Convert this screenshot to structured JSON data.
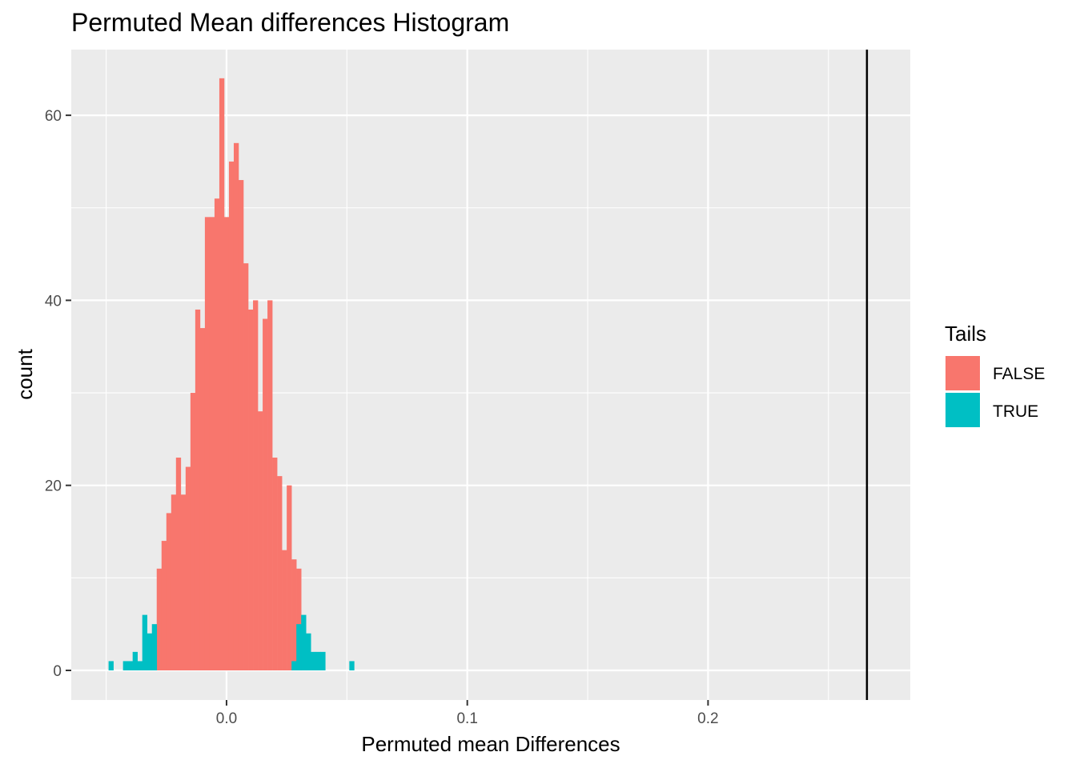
{
  "chart_data": {
    "type": "bar",
    "title": "Permuted Mean differences Histogram",
    "xlabel": "Permuted mean Differences",
    "ylabel": "count",
    "xlim": [
      -0.0645,
      0.284
    ],
    "ylim": [
      -3.2,
      67.1
    ],
    "x_ticks": [
      {
        "value": 0.0,
        "label": "0.0"
      },
      {
        "value": 0.1,
        "label": "0.1"
      },
      {
        "value": 0.2,
        "label": "0.2"
      }
    ],
    "x_minor_ticks": [
      -0.05,
      0.05,
      0.15,
      0.25
    ],
    "y_ticks": [
      {
        "value": 0,
        "label": "0"
      },
      {
        "value": 20,
        "label": "20"
      },
      {
        "value": 40,
        "label": "40"
      },
      {
        "value": 60,
        "label": "60"
      }
    ],
    "y_minor_ticks": [
      10,
      30,
      50
    ],
    "grid": true,
    "binwidth": 0.002,
    "series": [
      {
        "name": "FALSE",
        "color": "#f8766d",
        "bins": [
          {
            "x": -0.028,
            "count": 11
          },
          {
            "x": -0.026,
            "count": 14
          },
          {
            "x": -0.024,
            "count": 17
          },
          {
            "x": -0.022,
            "count": 19
          },
          {
            "x": -0.02,
            "count": 23
          },
          {
            "x": -0.018,
            "count": 19
          },
          {
            "x": -0.016,
            "count": 22
          },
          {
            "x": -0.014,
            "count": 30
          },
          {
            "x": -0.012,
            "count": 39
          },
          {
            "x": -0.01,
            "count": 37
          },
          {
            "x": -0.008,
            "count": 49
          },
          {
            "x": -0.006,
            "count": 49
          },
          {
            "x": -0.004,
            "count": 51
          },
          {
            "x": -0.002,
            "count": 64
          },
          {
            "x": 0.0,
            "count": 49
          },
          {
            "x": 0.002,
            "count": 55
          },
          {
            "x": 0.004,
            "count": 57
          },
          {
            "x": 0.006,
            "count": 53
          },
          {
            "x": 0.008,
            "count": 44
          },
          {
            "x": 0.01,
            "count": 39
          },
          {
            "x": 0.012,
            "count": 40
          },
          {
            "x": 0.014,
            "count": 28
          },
          {
            "x": 0.016,
            "count": 38
          },
          {
            "x": 0.018,
            "count": 40
          },
          {
            "x": 0.02,
            "count": 23
          },
          {
            "x": 0.022,
            "count": 21
          },
          {
            "x": 0.024,
            "count": 13
          },
          {
            "x": 0.026,
            "count": 20
          },
          {
            "x": 0.028,
            "count": 12
          },
          {
            "x": 0.03,
            "count": 11
          }
        ]
      },
      {
        "name": "TRUE",
        "color": "#00bfc4",
        "bins": [
          {
            "x": -0.048,
            "count": 1
          },
          {
            "x": -0.042,
            "count": 1
          },
          {
            "x": -0.04,
            "count": 1
          },
          {
            "x": -0.038,
            "count": 2
          },
          {
            "x": -0.036,
            "count": 1
          },
          {
            "x": -0.034,
            "count": 6
          },
          {
            "x": -0.032,
            "count": 4
          },
          {
            "x": -0.03,
            "count": 5
          },
          {
            "x": 0.028,
            "count": 1
          },
          {
            "x": 0.03,
            "count": 5
          },
          {
            "x": 0.032,
            "count": 6
          },
          {
            "x": 0.034,
            "count": 4
          },
          {
            "x": 0.036,
            "count": 2
          },
          {
            "x": 0.038,
            "count": 2
          },
          {
            "x": 0.04,
            "count": 2
          },
          {
            "x": 0.052,
            "count": 1
          }
        ]
      }
    ],
    "vline": {
      "x": 0.266,
      "color": "#000000"
    },
    "legend": {
      "title": "Tails",
      "position": "right",
      "items": [
        {
          "label": "FALSE",
          "color": "#f8766d"
        },
        {
          "label": "TRUE",
          "color": "#00bfc4"
        }
      ]
    }
  }
}
